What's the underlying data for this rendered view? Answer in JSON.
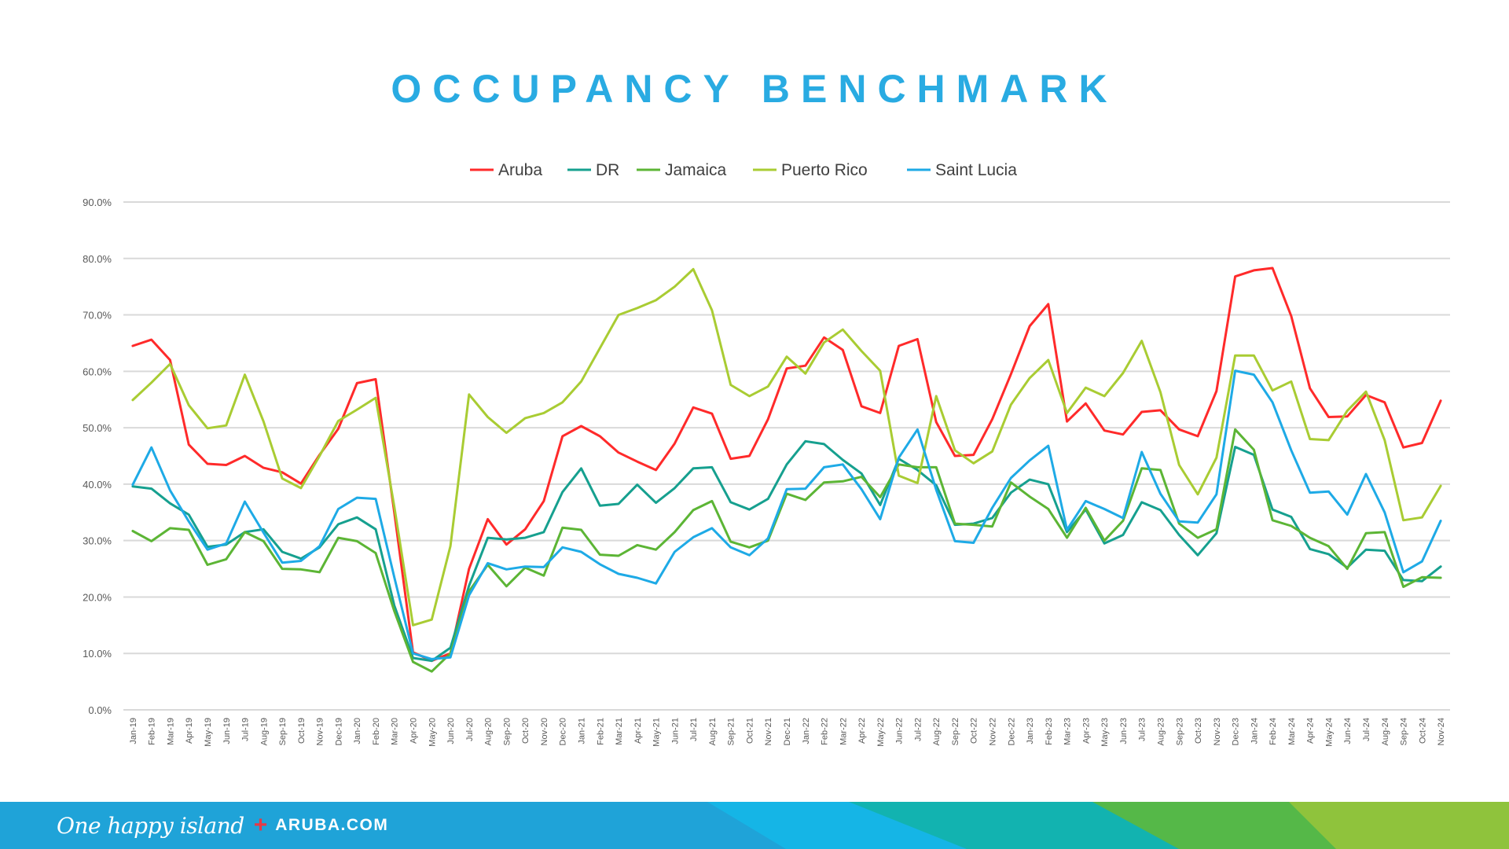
{
  "title": "OCCUPANCY BENCHMARK",
  "footer": {
    "tagline": "One happy island",
    "plus": "+",
    "site": "ARUBA.COM"
  },
  "colors": {
    "title": "#29ABE2",
    "grid": "#D9D9D9",
    "axis_text": "#595959",
    "footer_band": [
      "#1FA3D8",
      "#15B5E6",
      "#12B3B0",
      "#55B848",
      "#8FC33C"
    ]
  },
  "chart_data": {
    "type": "line",
    "title": "OCCUPANCY BENCHMARK",
    "xlabel": "",
    "ylabel": "",
    "ylim": [
      0,
      90
    ],
    "yticks": [
      0,
      10,
      20,
      30,
      40,
      50,
      60,
      70,
      80,
      90
    ],
    "ytick_labels": [
      "0.0%",
      "10.0%",
      "20.0%",
      "30.0%",
      "40.0%",
      "50.0%",
      "60.0%",
      "70.0%",
      "80.0%",
      "90.0%"
    ],
    "grid": true,
    "legend_position": "top-center",
    "categories": [
      "Jan-19",
      "Feb-19",
      "Mar-19",
      "Apr-19",
      "May-19",
      "Jun-19",
      "Jul-19",
      "Aug-19",
      "Sep-19",
      "Oct-19",
      "Nov-19",
      "Dec-19",
      "Jan-20",
      "Feb-20",
      "Mar-20",
      "Apr-20",
      "May-20",
      "Jun-20",
      "Jul-20",
      "Aug-20",
      "Sep-20",
      "Oct-20",
      "Nov-20",
      "Dec-20",
      "Jan-21",
      "Feb-21",
      "Mar-21",
      "Apr-21",
      "May-21",
      "Jun-21",
      "Jul-21",
      "Aug-21",
      "Sep-21",
      "Oct-21",
      "Nov-21",
      "Dec-21",
      "Jan-22",
      "Feb-22",
      "Mar-22",
      "Apr-22",
      "May-22",
      "Jun-22",
      "Jul-22",
      "Aug-22",
      "Sep-22",
      "Oct-22",
      "Nov-22",
      "Dec-22",
      "Jan-23",
      "Feb-23",
      "Mar-23",
      "Apr-23",
      "May-23",
      "Jun-23",
      "Jul-23",
      "Aug-23",
      "Sep-23",
      "Oct-23",
      "Nov-23",
      "Dec-23",
      "Jan-24",
      "Feb-24",
      "Mar-24",
      "Apr-24",
      "May-24",
      "Jun-24",
      "Jul-24",
      "Aug-24",
      "Sep-24",
      "Oct-24",
      "Nov-24"
    ],
    "series": [
      {
        "name": "Aruba",
        "color": "#FF2A2A",
        "values": [
          64.5,
          65.6,
          62.0,
          47.0,
          43.6,
          43.4,
          45.0,
          42.9,
          42.1,
          40.1,
          45.2,
          49.8,
          57.9,
          58.6,
          35.0,
          10.2,
          8.7,
          10.0,
          25.0,
          33.8,
          29.3,
          32.0,
          37.0,
          48.5,
          50.3,
          48.5,
          45.6,
          44.0,
          42.5,
          47.2,
          53.6,
          52.5,
          44.5,
          45.0,
          51.5,
          60.5,
          61.0,
          66.0,
          63.8,
          53.8,
          52.6,
          64.5,
          65.7,
          51.0,
          45.0,
          45.2,
          51.5,
          59.5,
          68.0,
          71.9,
          51.1,
          54.3,
          49.5,
          48.8,
          52.8,
          53.1,
          49.7,
          48.5,
          56.5,
          76.8,
          77.9,
          78.3,
          69.8,
          57.0,
          51.9,
          52.0,
          55.8,
          54.5,
          46.5,
          47.3,
          54.8
        ]
      },
      {
        "name": "DR",
        "color": "#16A08F",
        "values": [
          39.6,
          39.2,
          36.6,
          34.6,
          28.9,
          29.3,
          31.5,
          32.0,
          28.0,
          26.8,
          28.8,
          32.9,
          34.1,
          32.0,
          18.5,
          9.2,
          8.7,
          11.0,
          22.0,
          30.5,
          30.2,
          30.5,
          31.5,
          38.6,
          42.8,
          36.2,
          36.5,
          39.9,
          36.7,
          39.3,
          42.8,
          43.0,
          36.8,
          35.5,
          37.4,
          43.5,
          47.6,
          47.1,
          44.3,
          41.9,
          36.3,
          44.5,
          42.5,
          39.8,
          32.8,
          33.0,
          34.0,
          38.5,
          40.8,
          40.0,
          31.5,
          35.5,
          29.5,
          31.0,
          36.8,
          35.4,
          31.0,
          27.4,
          31.3,
          46.6,
          45.2,
          35.5,
          34.2,
          28.5,
          27.6,
          25.2,
          28.4,
          28.2,
          23.0,
          22.8,
          25.4
        ]
      },
      {
        "name": "Jamaica",
        "color": "#5CB535",
        "values": [
          31.7,
          29.9,
          32.2,
          31.9,
          25.7,
          26.7,
          31.5,
          29.9,
          25.0,
          24.9,
          24.4,
          30.5,
          29.9,
          27.8,
          17.5,
          8.5,
          6.8,
          10.0,
          21.0,
          25.7,
          21.9,
          25.2,
          23.8,
          32.3,
          31.9,
          27.5,
          27.3,
          29.2,
          28.4,
          31.5,
          35.4,
          37.0,
          29.8,
          28.8,
          30.0,
          38.3,
          37.2,
          40.3,
          40.5,
          41.3,
          37.7,
          43.5,
          43.0,
          43.0,
          33.0,
          32.8,
          32.5,
          40.3,
          37.8,
          35.6,
          30.5,
          35.8,
          30.0,
          33.5,
          42.8,
          42.5,
          33.0,
          30.5,
          32.0,
          49.7,
          46.1,
          33.6,
          32.6,
          30.5,
          29.0,
          25.0,
          31.3,
          31.5,
          21.8,
          23.5,
          23.4
        ]
      },
      {
        "name": "Puerto Rico",
        "color": "#A9CC33",
        "values": [
          54.9,
          58.0,
          61.3,
          54.0,
          49.9,
          50.4,
          59.4,
          51.1,
          41.0,
          39.3,
          45.0,
          51.2,
          53.2,
          55.3,
          36.0,
          15.0,
          16.0,
          29.0,
          55.9,
          51.9,
          49.1,
          51.7,
          52.6,
          54.5,
          58.2,
          64.1,
          70.0,
          71.2,
          72.6,
          75.0,
          78.1,
          70.8,
          57.6,
          55.6,
          57.3,
          62.6,
          59.6,
          65.1,
          67.4,
          63.6,
          60.1,
          41.5,
          40.2,
          55.6,
          46.0,
          43.7,
          45.8,
          54.1,
          58.8,
          62.0,
          52.6,
          57.1,
          55.6,
          59.7,
          65.4,
          56.3,
          43.4,
          38.2,
          44.7,
          62.8,
          62.8,
          56.6,
          58.2,
          48.0,
          47.8,
          53.0,
          56.4,
          47.8,
          33.6,
          34.1,
          39.7
        ]
      },
      {
        "name": "Saint Lucia",
        "color": "#1EAAE6",
        "values": [
          39.9,
          46.5,
          38.9,
          33.4,
          28.4,
          29.5,
          36.9,
          31.4,
          26.1,
          26.4,
          29.0,
          35.6,
          37.6,
          37.4,
          23.5,
          10.0,
          9.0,
          9.3,
          20.3,
          26.0,
          24.9,
          25.4,
          25.3,
          28.8,
          28.0,
          25.8,
          24.1,
          23.4,
          22.4,
          28.0,
          30.6,
          32.2,
          28.8,
          27.4,
          30.4,
          39.1,
          39.2,
          43.0,
          43.5,
          39.1,
          33.8,
          44.7,
          49.7,
          39.0,
          29.9,
          29.6,
          35.8,
          41.1,
          44.2,
          46.8,
          31.9,
          37.0,
          35.6,
          34.0,
          45.7,
          38.3,
          33.4,
          33.2,
          38.2,
          60.1,
          59.4,
          54.5,
          46.0,
          38.5,
          38.7,
          34.6,
          41.8,
          35.0,
          24.4,
          26.3,
          33.5
        ]
      }
    ]
  }
}
